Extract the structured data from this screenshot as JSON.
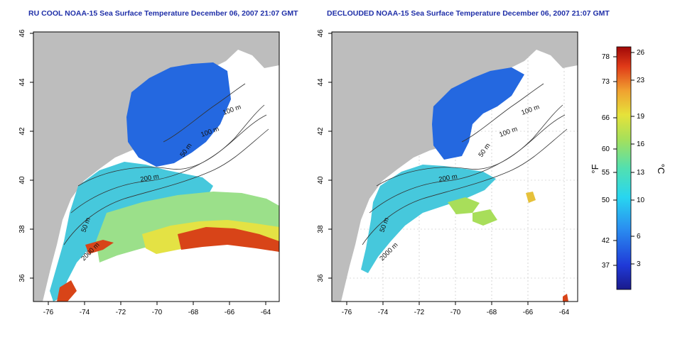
{
  "left_panel": {
    "title": "RU COOL NOAA-15 Sea Surface Temperature December 06, 2007 21:07 GMT",
    "contours": [
      "100 m",
      "100 m",
      "50 m",
      "200 m",
      "50 m",
      "2000 m"
    ]
  },
  "right_panel": {
    "title": "DECLOUDED NOAA-15 Sea Surface Temperature December 06, 2007 21:07 GMT",
    "contours": [
      "100 m",
      "100 m",
      "50 m",
      "200 m",
      "50 m",
      "2000 m"
    ]
  },
  "lat_ticks": [
    "36",
    "38",
    "40",
    "42",
    "44",
    "46"
  ],
  "lon_ticks": [
    "-76",
    "-74",
    "-72",
    "-70",
    "-68",
    "-66",
    "-64"
  ],
  "colorbar": {
    "fahrenheit_label": "°F",
    "celsius_label": "°C",
    "fahrenheit_ticks": [
      "37",
      "42",
      "50",
      "55",
      "60",
      "66",
      "73",
      "78"
    ],
    "celsius_ticks": [
      "3",
      "6",
      "10",
      "13",
      "16",
      "19",
      "23",
      "26"
    ]
  },
  "colors": {
    "land": "#bdbdbd",
    "title": "#1f2fa8",
    "cold": "#1a4fd8",
    "mid": "#3ad0e0",
    "warm": "#e6e63a",
    "hot": "#d23a10"
  }
}
